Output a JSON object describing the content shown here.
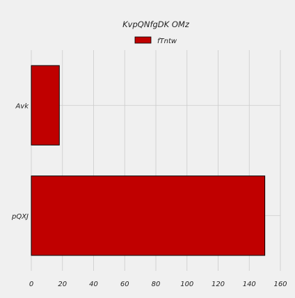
{
  "chart_data": {
    "type": "bar",
    "orientation": "horizontal",
    "title": "KvpQNfgDK OMz",
    "xlabel": "",
    "ylabel": "",
    "categories": [
      "Avk",
      "pQXJ"
    ],
    "series": [
      {
        "name": "fTntw",
        "values": [
          18,
          150
        ]
      }
    ],
    "xlim": [
      0,
      160
    ],
    "xticks": [
      "0",
      "20",
      "40",
      "60",
      "80",
      "100",
      "120",
      "140",
      "160"
    ],
    "grid": true,
    "legend_position": "top-center",
    "colors": {
      "background": "#f0f0f0",
      "bar_fill": "#c00000",
      "bar_edge": "#000000",
      "grid": "#cbcbcb",
      "text": "#222222"
    }
  }
}
